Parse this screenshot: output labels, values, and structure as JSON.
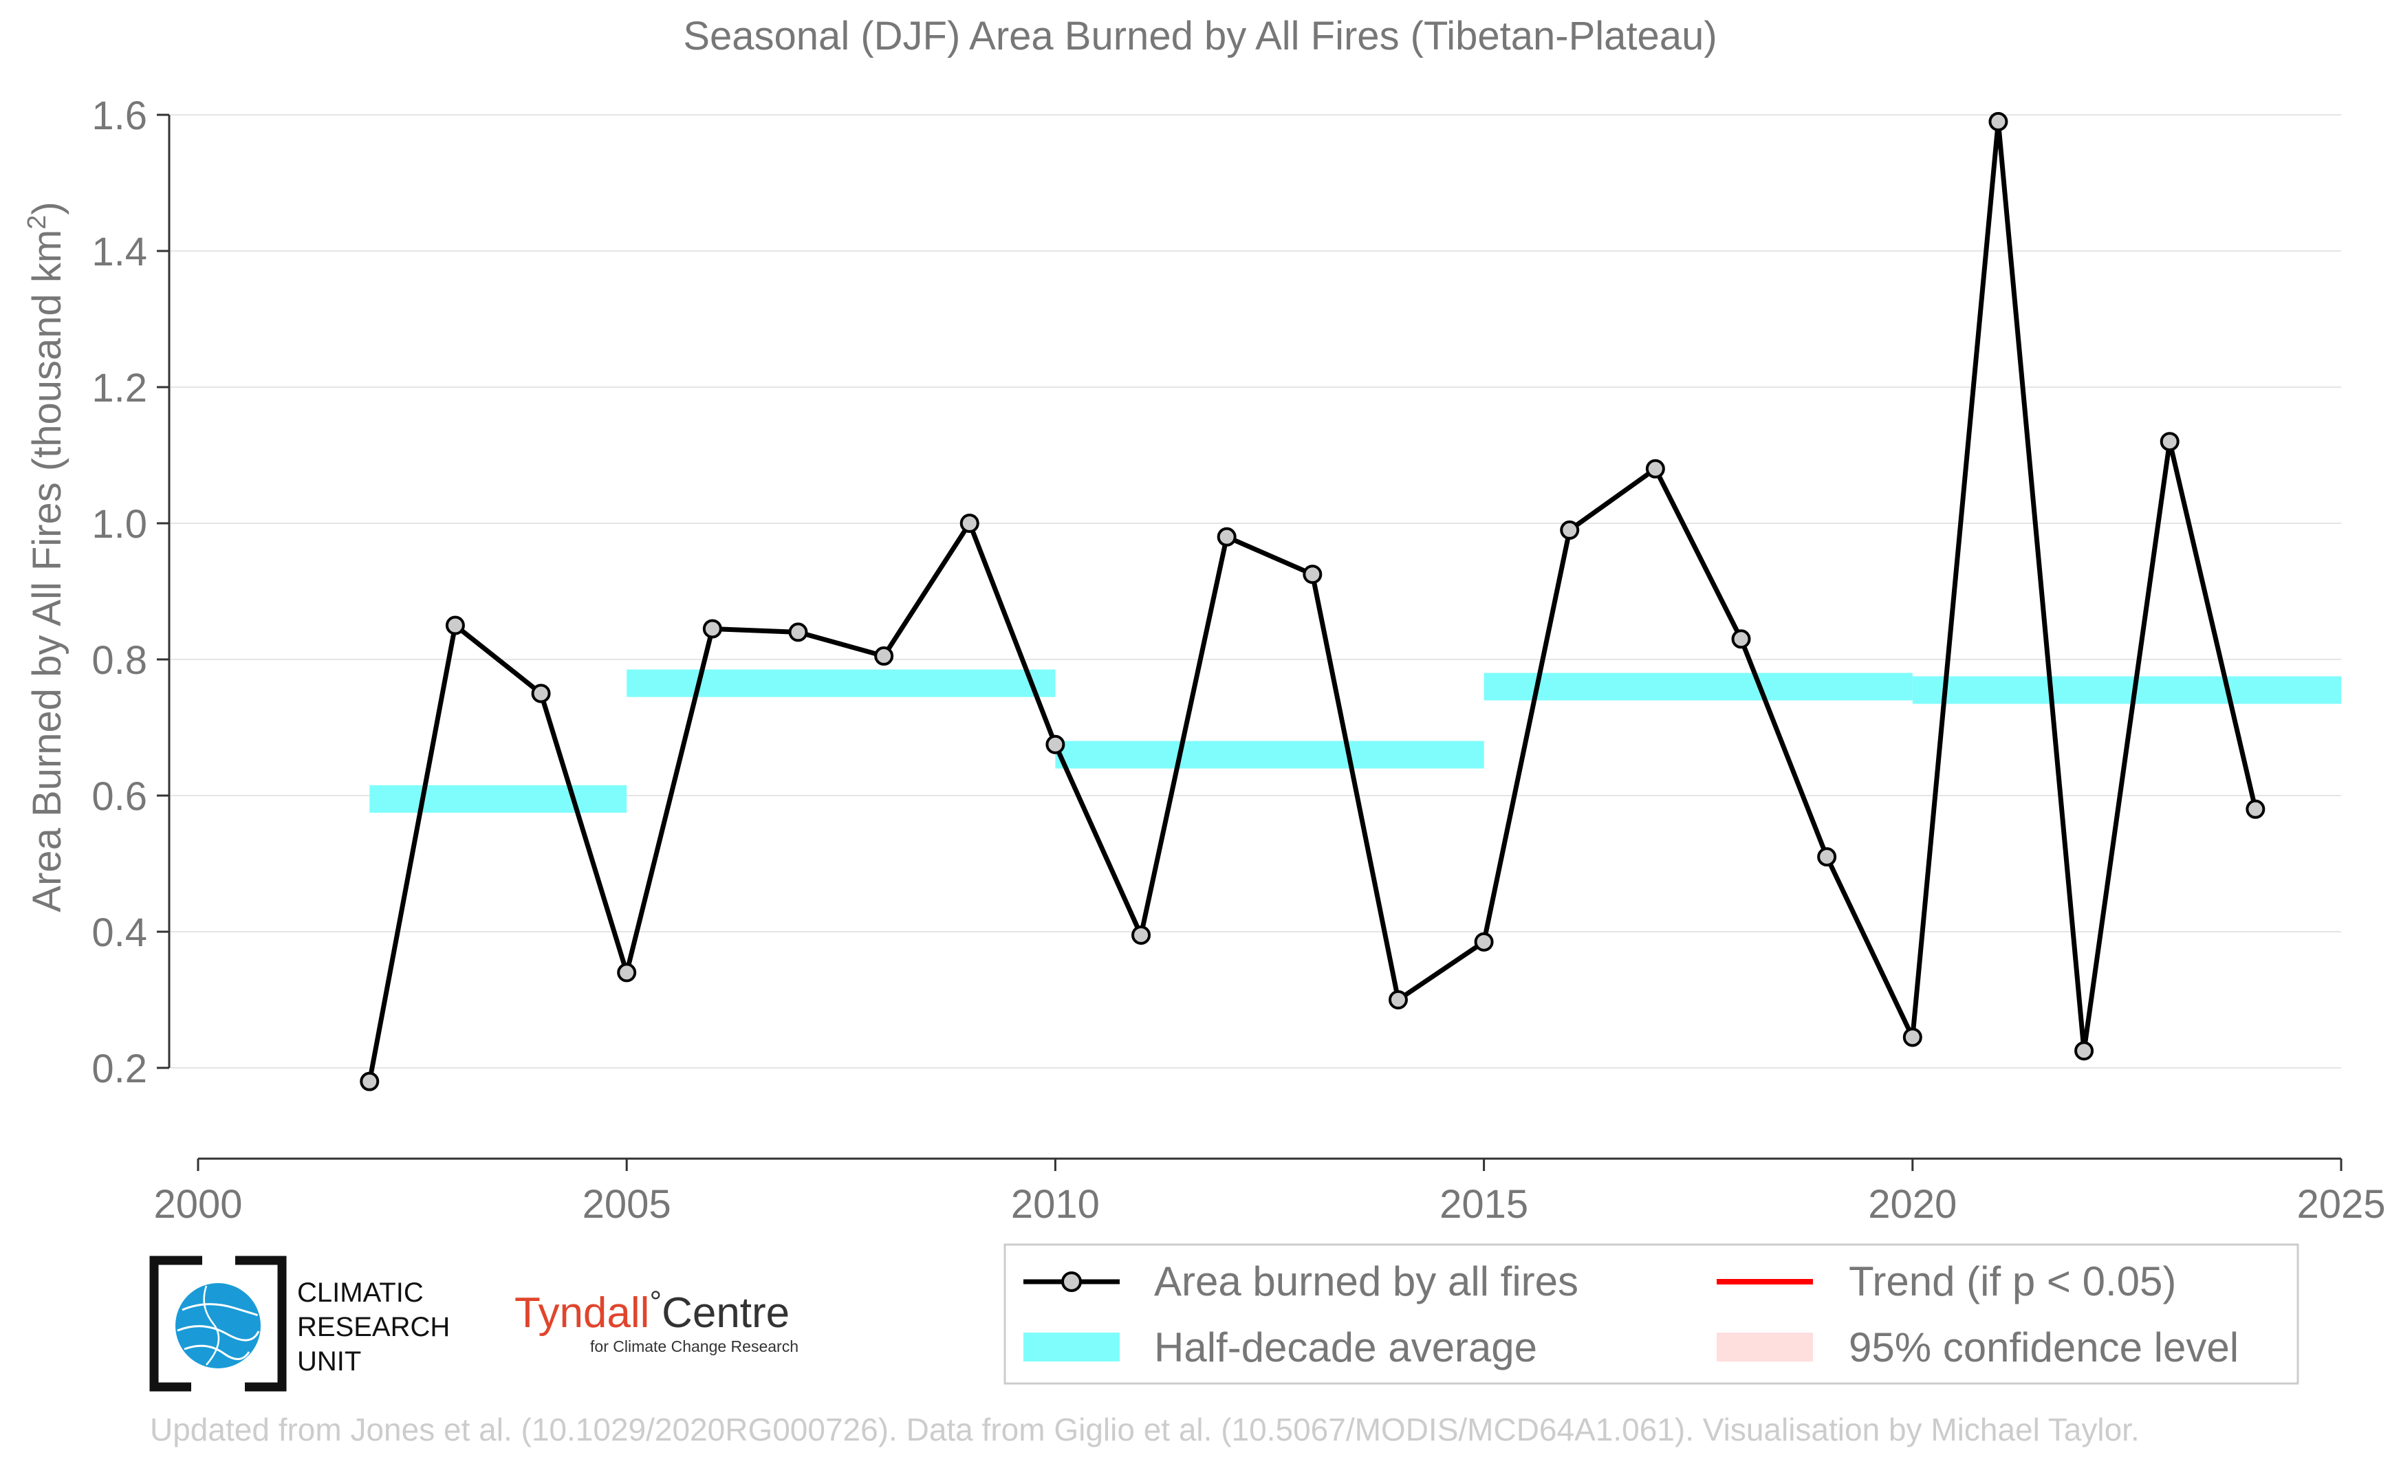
{
  "chart_data": {
    "type": "line",
    "title": "Seasonal (DJF) Area Burned by All Fires (Tibetan-Plateau)",
    "ylabel_main": "Area Burned by All Fires (thousand km",
    "ylabel_sup": "2",
    "ylabel_end": ")",
    "xlim": [
      2000,
      2025
    ],
    "ylim": [
      0.2,
      1.6
    ],
    "xticks": [
      2000,
      2005,
      2010,
      2015,
      2020,
      2025
    ],
    "yticks": [
      "0.2",
      "0.4",
      "0.6",
      "0.8",
      "1.0",
      "1.2",
      "1.4",
      "1.6"
    ],
    "grid": "horizontal",
    "series": [
      {
        "name": "Area burned by all fires",
        "color": "#000000",
        "x": [
          2002,
          2003,
          2004,
          2005,
          2006,
          2007,
          2008,
          2009,
          2010,
          2011,
          2012,
          2013,
          2014,
          2015,
          2016,
          2017,
          2018,
          2019,
          2020,
          2021,
          2022,
          2023,
          2024
        ],
        "y": [
          0.18,
          0.85,
          0.75,
          0.34,
          0.845,
          0.84,
          0.805,
          1.0,
          0.675,
          0.395,
          0.98,
          0.925,
          0.3,
          0.385,
          0.99,
          1.08,
          0.83,
          0.51,
          0.245,
          1.59,
          0.225,
          1.12,
          0.58
        ]
      }
    ],
    "half_decade_average": {
      "name": "Half-decade average",
      "color": "#7ffdfd",
      "segments": [
        {
          "x0": 2002,
          "x1": 2005,
          "y": 0.595
        },
        {
          "x0": 2005,
          "x1": 2010,
          "y": 0.765
        },
        {
          "x0": 2010,
          "x1": 2015,
          "y": 0.66
        },
        {
          "x0": 2015,
          "x1": 2020,
          "y": 0.76
        },
        {
          "x0": 2020,
          "x1": 2025,
          "y": 0.755
        }
      ]
    },
    "legend": {
      "placement": "bottom-right",
      "items": [
        {
          "label": "Area burned by all fires",
          "kind": "line-marker",
          "color": "#000000"
        },
        {
          "label": "Trend (if p < 0.05)",
          "kind": "line",
          "color": "#ff0000"
        },
        {
          "label": "Half-decade average",
          "kind": "band",
          "color": "#7ffdfd"
        },
        {
          "label": "95% confidence level",
          "kind": "band",
          "color": "#ffdede"
        }
      ]
    }
  },
  "logos": {
    "cru_lines": [
      "CLIMATIC",
      "RESEARCH",
      "UNIT"
    ],
    "tyndall_main": "Tyndall",
    "tyndall_degree": "°",
    "tyndall_centre": "Centre",
    "tyndall_sub": "for Climate Change Research"
  },
  "footer": "Updated from Jones et al. (10.1029/2020RG000726). Data from Giglio et al. (10.5067/MODIS/MCD64A1.061). Visualisation by Michael Taylor."
}
